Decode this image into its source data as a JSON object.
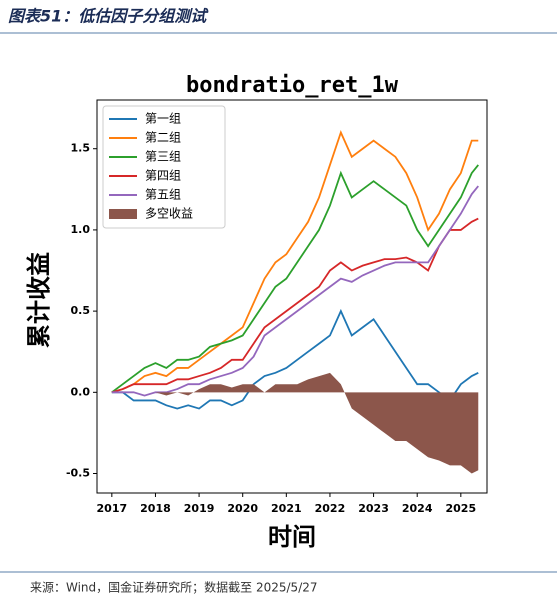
{
  "header": {
    "title": "图表51：低估因子分组测试"
  },
  "footer": {
    "source": "来源：Wind，国金证券研究所；数据截至 2025/5/27"
  },
  "chart_data": {
    "type": "line",
    "title": "bondratio_ret_1w",
    "x_label": "时间",
    "y_label": "累计收益",
    "x": [
      2017,
      2017.25,
      2017.5,
      2017.75,
      2018,
      2018.25,
      2018.5,
      2018.75,
      2019,
      2019.25,
      2019.5,
      2019.75,
      2020,
      2020.25,
      2020.5,
      2020.75,
      2021,
      2021.25,
      2021.5,
      2021.75,
      2022,
      2022.25,
      2022.5,
      2022.75,
      2023,
      2023.25,
      2023.5,
      2023.75,
      2024,
      2024.25,
      2024.5,
      2024.75,
      2025,
      2025.25,
      2025.4
    ],
    "series": [
      {
        "name": "第一组",
        "color": "#1f77b4",
        "style": "line",
        "values": [
          0,
          0,
          -0.05,
          -0.05,
          -0.05,
          -0.08,
          -0.1,
          -0.08,
          -0.1,
          -0.05,
          -0.05,
          -0.08,
          -0.05,
          0.05,
          0.1,
          0.12,
          0.15,
          0.2,
          0.25,
          0.3,
          0.35,
          0.5,
          0.35,
          0.4,
          0.45,
          0.35,
          0.25,
          0.15,
          0.05,
          0.05,
          0,
          -0.05,
          0.05,
          0.1,
          0.12
        ]
      },
      {
        "name": "第二组",
        "color": "#ff7f0e",
        "style": "line",
        "values": [
          0,
          0.02,
          0.05,
          0.1,
          0.12,
          0.1,
          0.15,
          0.15,
          0.2,
          0.25,
          0.3,
          0.35,
          0.4,
          0.55,
          0.7,
          0.8,
          0.85,
          0.95,
          1.05,
          1.2,
          1.4,
          1.6,
          1.45,
          1.5,
          1.55,
          1.5,
          1.45,
          1.35,
          1.2,
          1.0,
          1.1,
          1.25,
          1.35,
          1.55,
          1.55
        ]
      },
      {
        "name": "第三组",
        "color": "#2ca02c",
        "style": "line",
        "values": [
          0,
          0.05,
          0.1,
          0.15,
          0.18,
          0.15,
          0.2,
          0.2,
          0.22,
          0.28,
          0.3,
          0.32,
          0.35,
          0.45,
          0.55,
          0.65,
          0.7,
          0.8,
          0.9,
          1.0,
          1.15,
          1.35,
          1.2,
          1.25,
          1.3,
          1.25,
          1.2,
          1.15,
          1.0,
          0.9,
          1.0,
          1.1,
          1.2,
          1.35,
          1.4
        ]
      },
      {
        "name": "第四组",
        "color": "#d62728",
        "style": "line",
        "values": [
          0,
          0.02,
          0.05,
          0.05,
          0.05,
          0.05,
          0.08,
          0.08,
          0.1,
          0.12,
          0.15,
          0.2,
          0.2,
          0.3,
          0.4,
          0.45,
          0.5,
          0.55,
          0.6,
          0.65,
          0.75,
          0.8,
          0.75,
          0.78,
          0.8,
          0.82,
          0.82,
          0.83,
          0.8,
          0.75,
          0.9,
          1.0,
          1.0,
          1.05,
          1.07
        ]
      },
      {
        "name": "第五组",
        "color": "#9467bd",
        "style": "line",
        "values": [
          0,
          0,
          0,
          -0.02,
          0,
          0,
          0.02,
          0.05,
          0.05,
          0.08,
          0.1,
          0.12,
          0.15,
          0.22,
          0.35,
          0.4,
          0.45,
          0.5,
          0.55,
          0.6,
          0.65,
          0.7,
          0.68,
          0.72,
          0.75,
          0.78,
          0.8,
          0.8,
          0.8,
          0.8,
          0.9,
          1.0,
          1.1,
          1.22,
          1.27
        ]
      },
      {
        "name": "多空收益",
        "color": "#8c564b",
        "style": "area",
        "values": [
          0,
          0,
          0,
          0,
          0,
          -0.02,
          0,
          -0.02,
          0.02,
          0.05,
          0.05,
          0.03,
          0.05,
          0.05,
          0,
          0.05,
          0.05,
          0.05,
          0.08,
          0.1,
          0.12,
          0.05,
          -0.1,
          -0.15,
          -0.2,
          -0.25,
          -0.3,
          -0.3,
          -0.35,
          -0.4,
          -0.42,
          -0.45,
          -0.45,
          -0.5,
          -0.48
        ]
      }
    ],
    "xlim": [
      2016.66,
      2025.6
    ],
    "xticks": [
      2017,
      2018,
      2019,
      2020,
      2021,
      2022,
      2023,
      2024,
      2025
    ],
    "ylim": [
      -0.62,
      1.8
    ],
    "yticks": [
      -0.5,
      {
        "value": 0,
        "label": "0.0"
      },
      0.5,
      {
        "value": 1,
        "label": "1.0"
      },
      1.5
    ],
    "legend": "upper left",
    "grid": false
  }
}
